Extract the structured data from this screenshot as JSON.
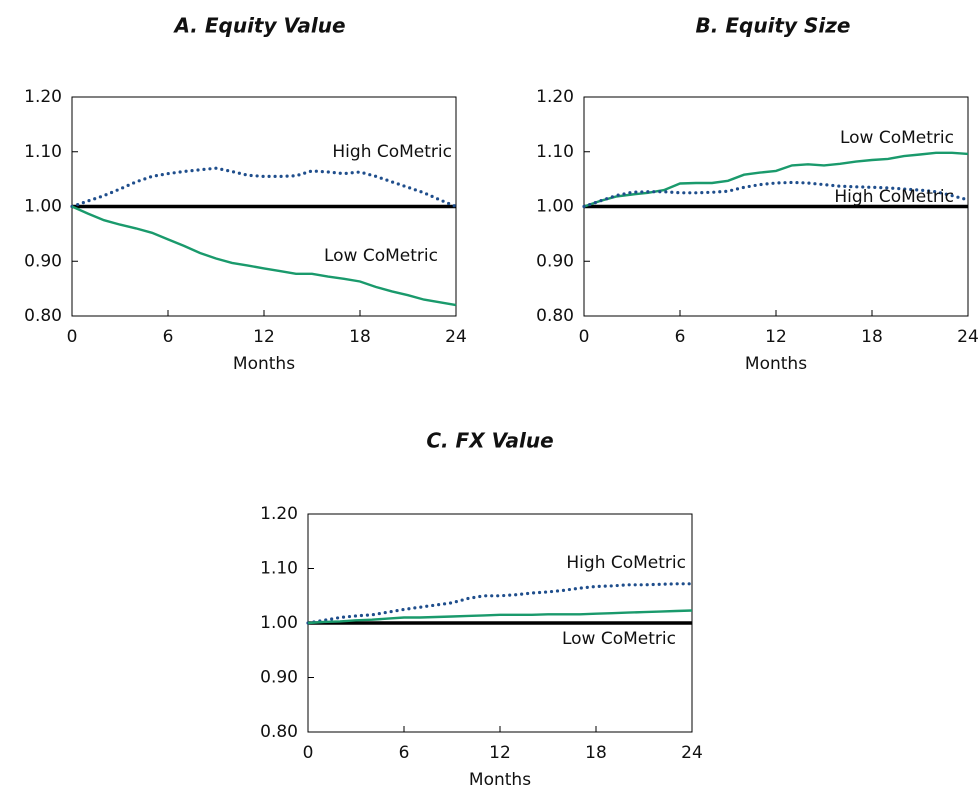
{
  "chart_data": [
    {
      "type": "line",
      "title": "A. Equity Value",
      "xlabel": "Months",
      "x": [
        0,
        1,
        2,
        3,
        4,
        5,
        6,
        7,
        8,
        9,
        10,
        11,
        12,
        13,
        14,
        15,
        16,
        17,
        18,
        19,
        20,
        21,
        22,
        23,
        24
      ],
      "xlim": [
        0,
        24
      ],
      "xticks": [
        0,
        6,
        12,
        18,
        24
      ],
      "ylim": [
        0.8,
        1.2
      ],
      "yticks": [
        {
          "value": 0.8,
          "label": "0.80"
        },
        {
          "value": 0.9,
          "label": "0.90"
        },
        {
          "value": 1.0,
          "label": "1.00"
        },
        {
          "value": 1.1,
          "label": "1.10"
        },
        {
          "value": 1.2,
          "label": "1.20"
        }
      ],
      "reference_line": 1.0,
      "series": [
        {
          "name": "High CoMetric",
          "color": "#1f4e8c",
          "style": "dotted",
          "values": [
            1.0,
            1.01,
            1.02,
            1.032,
            1.045,
            1.055,
            1.06,
            1.064,
            1.067,
            1.07,
            1.064,
            1.057,
            1.055,
            1.055,
            1.056,
            1.065,
            1.063,
            1.06,
            1.063,
            1.055,
            1.045,
            1.035,
            1.025,
            1.012,
            1.0
          ]
        },
        {
          "name": "Low CoMetric",
          "color": "#1a9a6c",
          "style": "solid",
          "values": [
            1.0,
            0.987,
            0.975,
            0.967,
            0.96,
            0.952,
            0.94,
            0.928,
            0.915,
            0.905,
            0.897,
            0.892,
            0.887,
            0.882,
            0.877,
            0.877,
            0.872,
            0.868,
            0.863,
            0.853,
            0.845,
            0.838,
            0.83,
            0.825,
            0.82
          ]
        }
      ]
    },
    {
      "type": "line",
      "title": "B. Equity Size",
      "xlabel": "Months",
      "x": [
        0,
        1,
        2,
        3,
        4,
        5,
        6,
        7,
        8,
        9,
        10,
        11,
        12,
        13,
        14,
        15,
        16,
        17,
        18,
        19,
        20,
        21,
        22,
        23,
        24
      ],
      "xlim": [
        0,
        24
      ],
      "xticks": [
        0,
        6,
        12,
        18,
        24
      ],
      "ylim": [
        0.8,
        1.2
      ],
      "yticks": [
        {
          "value": 0.8,
          "label": "0.80"
        },
        {
          "value": 0.9,
          "label": "0.90"
        },
        {
          "value": 1.0,
          "label": "1.00"
        },
        {
          "value": 1.1,
          "label": "1.10"
        },
        {
          "value": 1.2,
          "label": "1.20"
        }
      ],
      "reference_line": 1.0,
      "series": [
        {
          "name": "Low CoMetric",
          "color": "#1a9a6c",
          "style": "solid",
          "values": [
            1.0,
            1.01,
            1.018,
            1.022,
            1.025,
            1.03,
            1.042,
            1.043,
            1.043,
            1.047,
            1.058,
            1.062,
            1.065,
            1.075,
            1.077,
            1.075,
            1.078,
            1.082,
            1.085,
            1.087,
            1.092,
            1.095,
            1.098,
            1.098,
            1.096
          ]
        },
        {
          "name": "High CoMetric",
          "color": "#1f4e8c",
          "style": "dotted",
          "values": [
            1.0,
            1.01,
            1.02,
            1.026,
            1.027,
            1.027,
            1.025,
            1.025,
            1.026,
            1.028,
            1.035,
            1.04,
            1.043,
            1.044,
            1.043,
            1.04,
            1.037,
            1.036,
            1.035,
            1.034,
            1.032,
            1.03,
            1.027,
            1.02,
            1.012
          ]
        }
      ]
    },
    {
      "type": "line",
      "title": "C. FX Value",
      "xlabel": "Months",
      "x": [
        0,
        1,
        2,
        3,
        4,
        5,
        6,
        7,
        8,
        9,
        10,
        11,
        12,
        13,
        14,
        15,
        16,
        17,
        18,
        19,
        20,
        21,
        22,
        23,
        24
      ],
      "xlim": [
        0,
        24
      ],
      "xticks": [
        0,
        6,
        12,
        18,
        24
      ],
      "ylim": [
        0.8,
        1.2
      ],
      "yticks": [
        {
          "value": 0.8,
          "label": "0.80"
        },
        {
          "value": 0.9,
          "label": "0.90"
        },
        {
          "value": 1.0,
          "label": "1.00"
        },
        {
          "value": 1.1,
          "label": "1.10"
        },
        {
          "value": 1.2,
          "label": "1.20"
        }
      ],
      "reference_line": 1.0,
      "series": [
        {
          "name": "High CoMetric",
          "color": "#1f4e8c",
          "style": "dotted",
          "values": [
            1.0,
            1.005,
            1.01,
            1.013,
            1.015,
            1.02,
            1.025,
            1.029,
            1.033,
            1.037,
            1.045,
            1.05,
            1.05,
            1.052,
            1.055,
            1.057,
            1.06,
            1.064,
            1.067,
            1.068,
            1.07,
            1.07,
            1.071,
            1.072,
            1.072
          ]
        },
        {
          "name": "Low CoMetric",
          "color": "#1a9a6c",
          "style": "solid",
          "values": [
            1.0,
            1.002,
            1.003,
            1.005,
            1.006,
            1.008,
            1.01,
            1.01,
            1.011,
            1.012,
            1.013,
            1.014,
            1.015,
            1.015,
            1.015,
            1.016,
            1.016,
            1.016,
            1.017,
            1.018,
            1.019,
            1.02,
            1.021,
            1.022,
            1.023
          ]
        }
      ]
    }
  ]
}
